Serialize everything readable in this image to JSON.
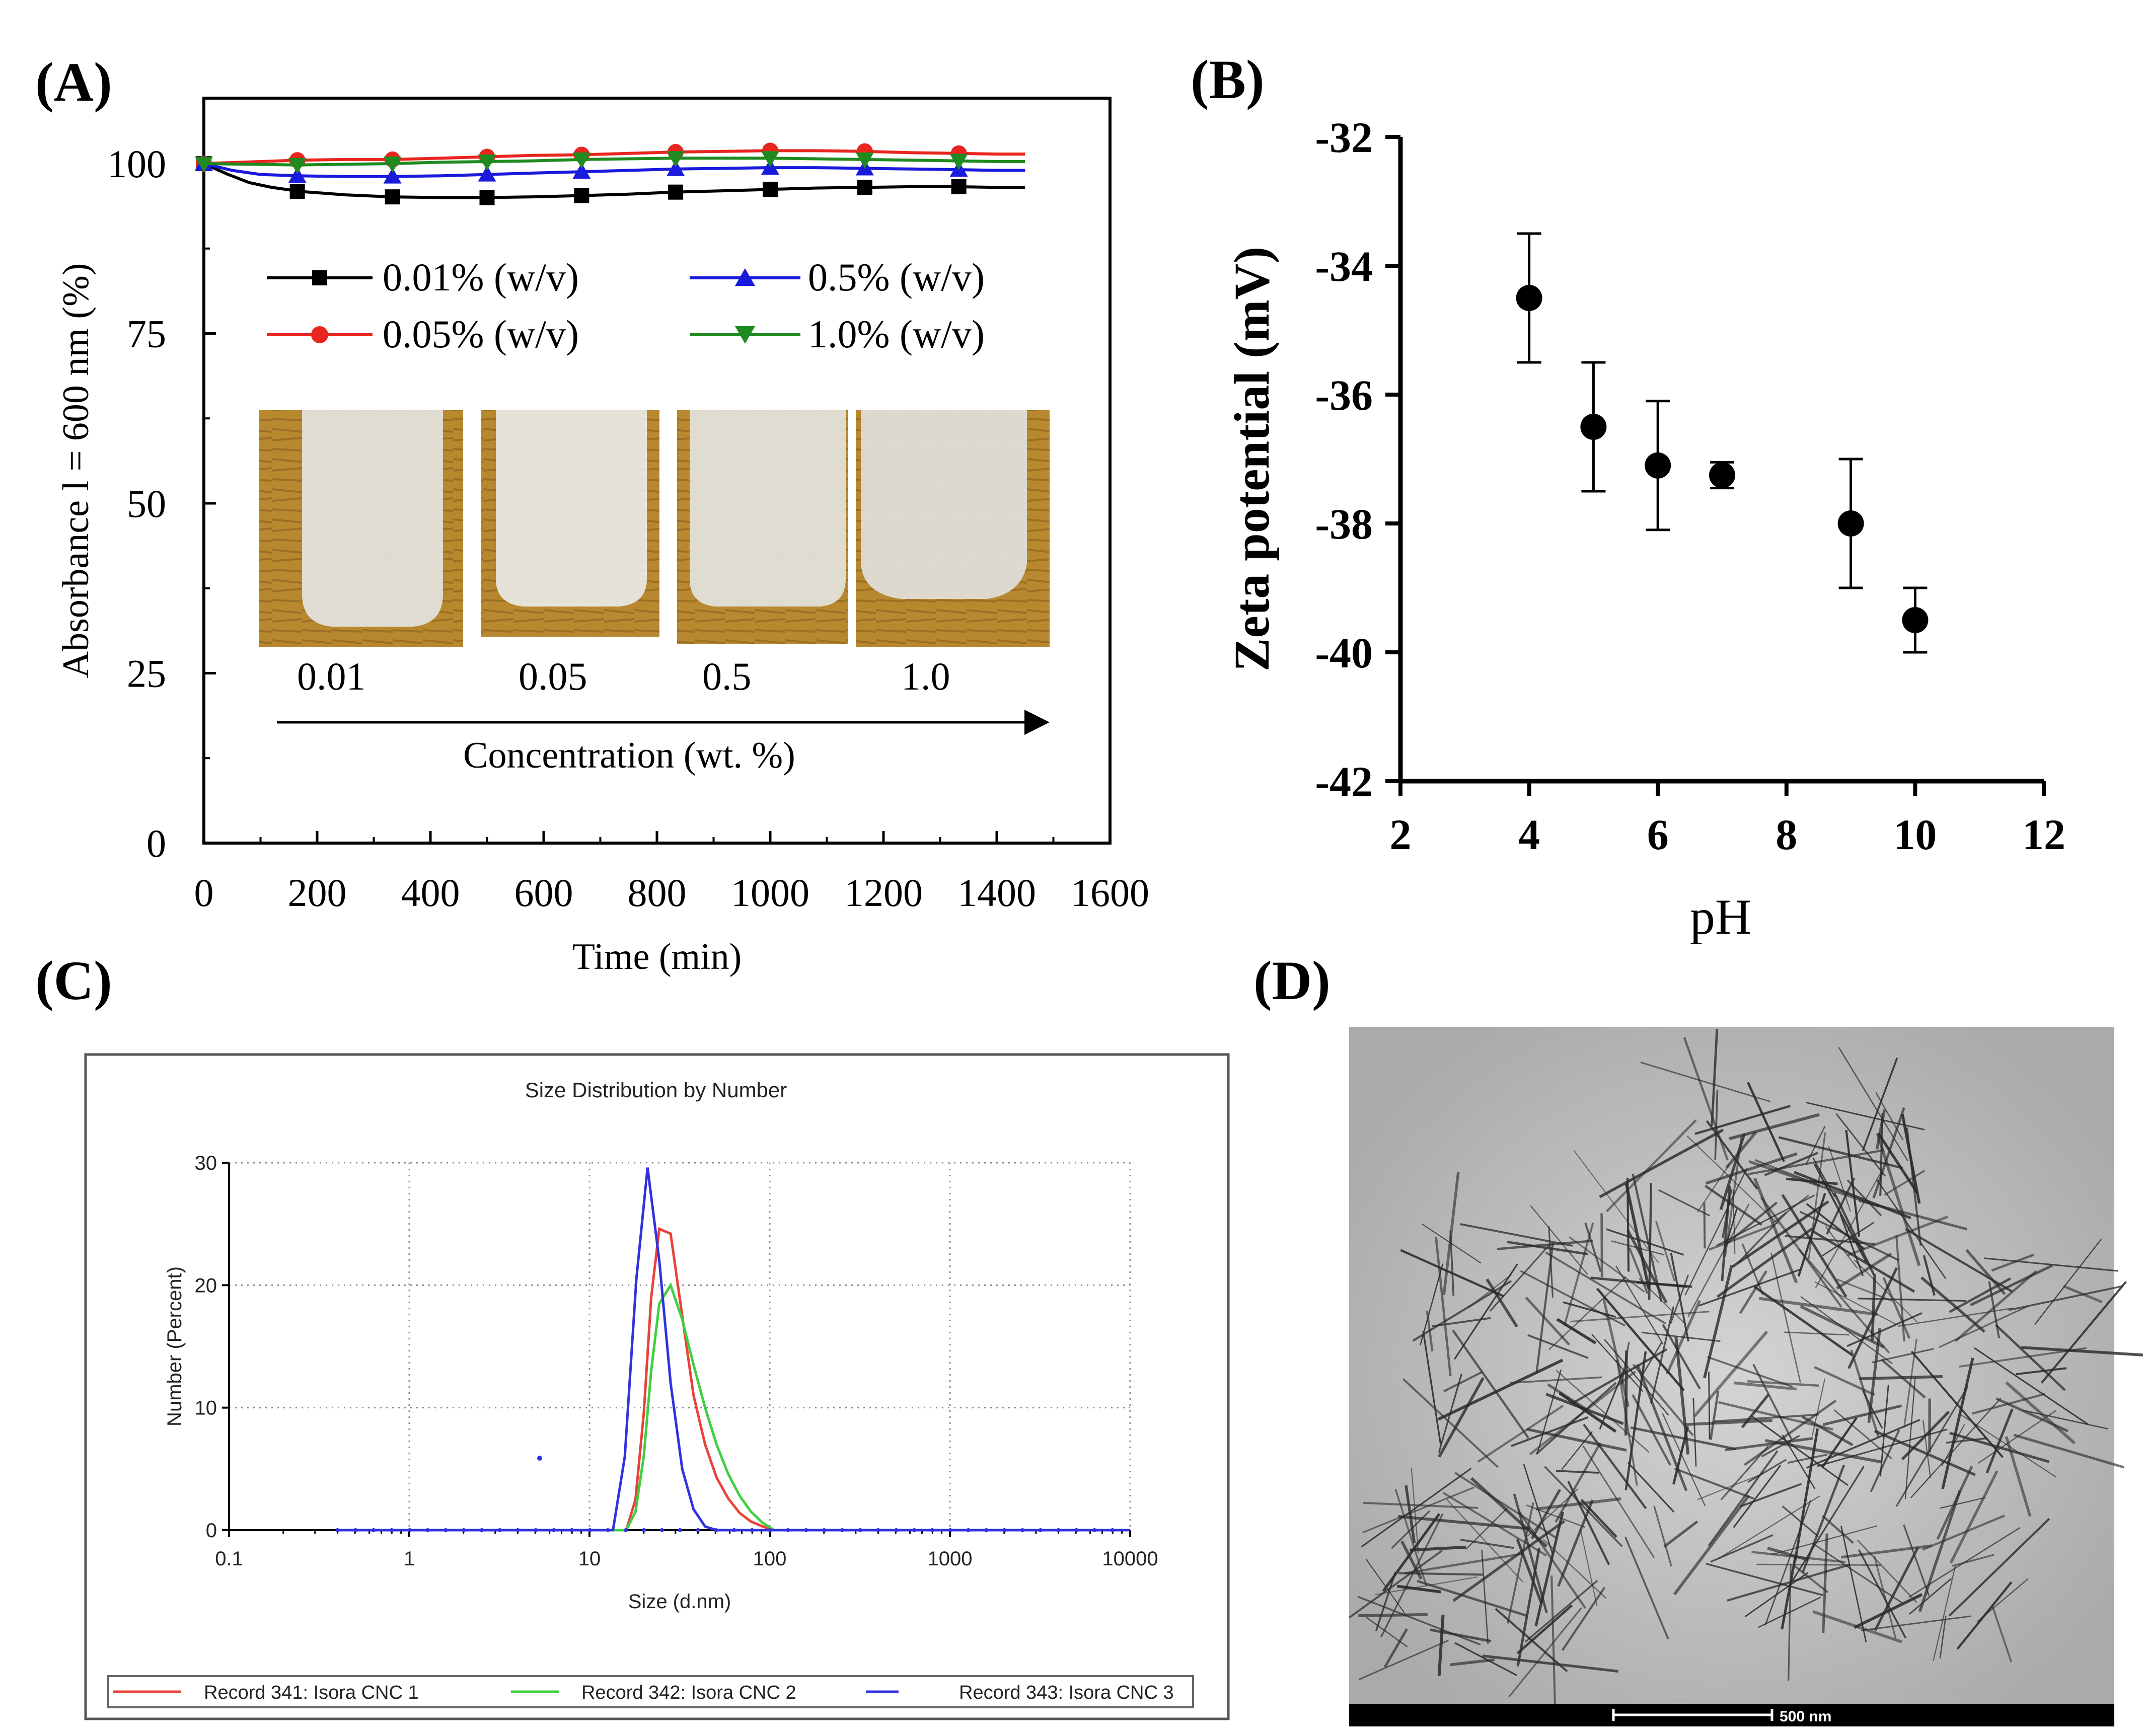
{
  "panel_labels": {
    "a": "(A)",
    "b": "(B)",
    "c": "(C)",
    "d": "(D)"
  },
  "colors": {
    "black": "#000000",
    "red": "#e8251f",
    "blue": "#1a1adc",
    "green": "#1f8a1f",
    "dls_red": "#e8423a",
    "dls_green": "#3fcf3f",
    "dls_blue": "#3131e0"
  },
  "icons": {
    "square": "square-marker",
    "circle": "circle-marker",
    "triangle_up": "triangle-up-marker",
    "triangle_down": "triangle-down-marker"
  },
  "chart_data": [
    {
      "id": "A",
      "type": "line",
      "title": "",
      "xlabel": "Time (min)",
      "ylabel": "Absorbance l = 600 nm  (%)",
      "xlim": [
        0,
        1600
      ],
      "ylim": [
        0,
        110
      ],
      "xticks": [
        0,
        200,
        400,
        600,
        800,
        1000,
        1200,
        1400,
        1600
      ],
      "yticks": [
        0,
        25,
        50,
        75,
        100
      ],
      "xtick_labels": [
        "0",
        "200",
        "400",
        "600",
        "800",
        "1000",
        "1200",
        "1400",
        "1600"
      ],
      "ytick_labels": [
        "0",
        "25",
        "50",
        "75",
        "100"
      ],
      "series": [
        {
          "name": "0.01% (w/v)",
          "color": "#000000",
          "marker": "square",
          "x": [
            0,
            40,
            80,
            120,
            170,
            250,
            330,
            420,
            500,
            580,
            670,
            750,
            830,
            920,
            1000,
            1080,
            1170,
            1250,
            1330,
            1400,
            1450
          ],
          "y": [
            100,
            98.5,
            97.2,
            96.5,
            95.9,
            95.4,
            95.1,
            95.0,
            95.0,
            95.1,
            95.3,
            95.5,
            95.8,
            96.0,
            96.2,
            96.4,
            96.5,
            96.6,
            96.6,
            96.5,
            96.5
          ],
          "mx": [
            0,
            165,
            333,
            500,
            667,
            833,
            1000,
            1167,
            1333
          ],
          "my": [
            100,
            95.9,
            95.1,
            95.0,
            95.3,
            95.8,
            96.2,
            96.5,
            96.6
          ]
        },
        {
          "name": "0.05% (w/v)",
          "color": "#e8251f",
          "marker": "circle",
          "x": [
            0,
            100,
            165,
            250,
            333,
            420,
            500,
            580,
            667,
            750,
            833,
            920,
            1000,
            1080,
            1167,
            1250,
            1333,
            1400,
            1450
          ],
          "y": [
            100,
            100.3,
            100.5,
            100.6,
            100.6,
            100.8,
            101.0,
            101.2,
            101.3,
            101.5,
            101.7,
            101.8,
            101.9,
            101.9,
            101.8,
            101.6,
            101.5,
            101.4,
            101.4
          ],
          "mx": [
            0,
            165,
            333,
            500,
            667,
            833,
            1000,
            1167,
            1333
          ],
          "my": [
            100,
            100.5,
            100.6,
            101.0,
            101.3,
            101.7,
            101.9,
            101.8,
            101.5
          ]
        },
        {
          "name": "0.5% (w/v)",
          "color": "#1a1adc",
          "marker": "triangle_up",
          "x": [
            0,
            50,
            100,
            165,
            250,
            333,
            420,
            500,
            580,
            667,
            750,
            833,
            920,
            1000,
            1080,
            1167,
            1250,
            1333,
            1400,
            1450
          ],
          "y": [
            100,
            99.0,
            98.4,
            98.2,
            98.1,
            98.1,
            98.2,
            98.4,
            98.6,
            98.8,
            99.0,
            99.2,
            99.3,
            99.4,
            99.4,
            99.3,
            99.2,
            99.1,
            99.0,
            99.0
          ],
          "mx": [
            0,
            165,
            333,
            500,
            667,
            833,
            1000,
            1167,
            1333
          ],
          "my": [
            100,
            98.2,
            98.1,
            98.4,
            98.8,
            99.2,
            99.4,
            99.3,
            99.1
          ]
        },
        {
          "name": "1.0% (w/v)",
          "color": "#1f8a1f",
          "marker": "triangle_down",
          "x": [
            0,
            80,
            165,
            250,
            333,
            420,
            500,
            580,
            667,
            750,
            833,
            920,
            1000,
            1080,
            1167,
            1250,
            1333,
            1400,
            1450
          ],
          "y": [
            100,
            99.9,
            99.8,
            99.9,
            100.0,
            100.2,
            100.3,
            100.4,
            100.6,
            100.7,
            100.8,
            100.8,
            100.8,
            100.7,
            100.6,
            100.5,
            100.4,
            100.3,
            100.3
          ],
          "mx": [
            0,
            165,
            333,
            500,
            667,
            833,
            1000,
            1167,
            1333
          ],
          "my": [
            100,
            99.8,
            100.0,
            100.3,
            100.6,
            100.8,
            100.8,
            100.6,
            100.4
          ]
        }
      ],
      "legend": {
        "placement": "upper-center",
        "entries": [
          "0.01% (w/v)",
          "0.5% (w/v)",
          "0.05% (w/v)",
          "1.0% (w/v)"
        ]
      },
      "inset": {
        "description": "photos of vials",
        "labels": [
          "0.01",
          "0.05",
          "0.5",
          "1.0"
        ],
        "arrow_label": "Concentration (wt. %)"
      }
    },
    {
      "id": "B",
      "type": "scatter",
      "title": "",
      "xlabel": "pH",
      "ylabel": "Zeta potential (mV)",
      "xlim": [
        2,
        12
      ],
      "ylim": [
        -42,
        -32
      ],
      "xticks": [
        2,
        4,
        6,
        8,
        10,
        12
      ],
      "yticks": [
        -42,
        -40,
        -38,
        -36,
        -34,
        -32
      ],
      "xtick_labels": [
        "2",
        "4",
        "6",
        "8",
        "10",
        "12"
      ],
      "ytick_labels": [
        "-42",
        "-40",
        "-38",
        "-36",
        "-34",
        "-32"
      ],
      "points": [
        {
          "x": 4,
          "y": -34.5,
          "err": 1.0
        },
        {
          "x": 5,
          "y": -36.5,
          "err": 1.0
        },
        {
          "x": 6,
          "y": -37.1,
          "err": 1.0
        },
        {
          "x": 7,
          "y": -37.25,
          "err": 0.2
        },
        {
          "x": 9,
          "y": -38.0,
          "err": 1.0
        },
        {
          "x": 10,
          "y": -39.5,
          "err": 0.5
        }
      ]
    },
    {
      "id": "C",
      "type": "line",
      "title": "Size Distribution by Number",
      "xlabel": "Size (d.nm)",
      "ylabel": "Number (Percent)",
      "xscale": "log",
      "xlim": [
        0.1,
        10000
      ],
      "ylim": [
        0,
        30
      ],
      "xticks": [
        0.1,
        1,
        10,
        100,
        1000,
        10000
      ],
      "yticks": [
        0,
        10,
        20,
        30
      ],
      "xtick_labels": [
        "0.1",
        "1",
        "10",
        "100",
        "1000",
        "10000"
      ],
      "ytick_labels": [
        "0",
        "10",
        "20",
        "30"
      ],
      "grid": true,
      "series": [
        {
          "name": "Record 341: Isora CNC 1",
          "color": "#e8423a",
          "x": [
            0.4,
            16,
            18,
            20,
            22,
            24.4,
            28.2,
            32.7,
            37.8,
            43.8,
            50.7,
            58.8,
            68.1,
            78.8,
            91.3,
            105.7,
            10000
          ],
          "y": [
            0,
            0,
            2.5,
            9.5,
            19.0,
            24.6,
            24.2,
            17.5,
            11.0,
            7.0,
            4.3,
            2.6,
            1.4,
            0.7,
            0.3,
            0,
            0
          ]
        },
        {
          "name": "Record 342: Isora CNC 2",
          "color": "#3fcf3f",
          "x": [
            0.4,
            16,
            18,
            20,
            22,
            24.4,
            28.2,
            32.7,
            37.8,
            43.8,
            50.7,
            58.8,
            68.1,
            78.8,
            91.3,
            105.7,
            10000
          ],
          "y": [
            0,
            0,
            1.5,
            6.0,
            13.0,
            18.5,
            20.0,
            17.2,
            13.5,
            10.0,
            7.0,
            4.6,
            2.8,
            1.5,
            0.6,
            0,
            0
          ]
        },
        {
          "name": "Record 343: Isora CNC 3",
          "color": "#3131e0",
          "x": [
            0.4,
            13.5,
            15.7,
            18.2,
            21.0,
            24.4,
            28.2,
            32.7,
            37.8,
            43.8,
            50.7,
            10000
          ],
          "y": [
            0,
            0,
            6.0,
            20.5,
            29.6,
            22.0,
            12.0,
            5.0,
            1.7,
            0.3,
            0,
            0
          ]
        }
      ],
      "legend": {
        "placement": "bottom",
        "entries": [
          "Record 341: Isora CNC 1",
          "Record 342: Isora CNC 2",
          "Record 343: Isora CNC 3"
        ]
      }
    }
  ],
  "tem": {
    "scale_bar_label": "500 nm"
  }
}
